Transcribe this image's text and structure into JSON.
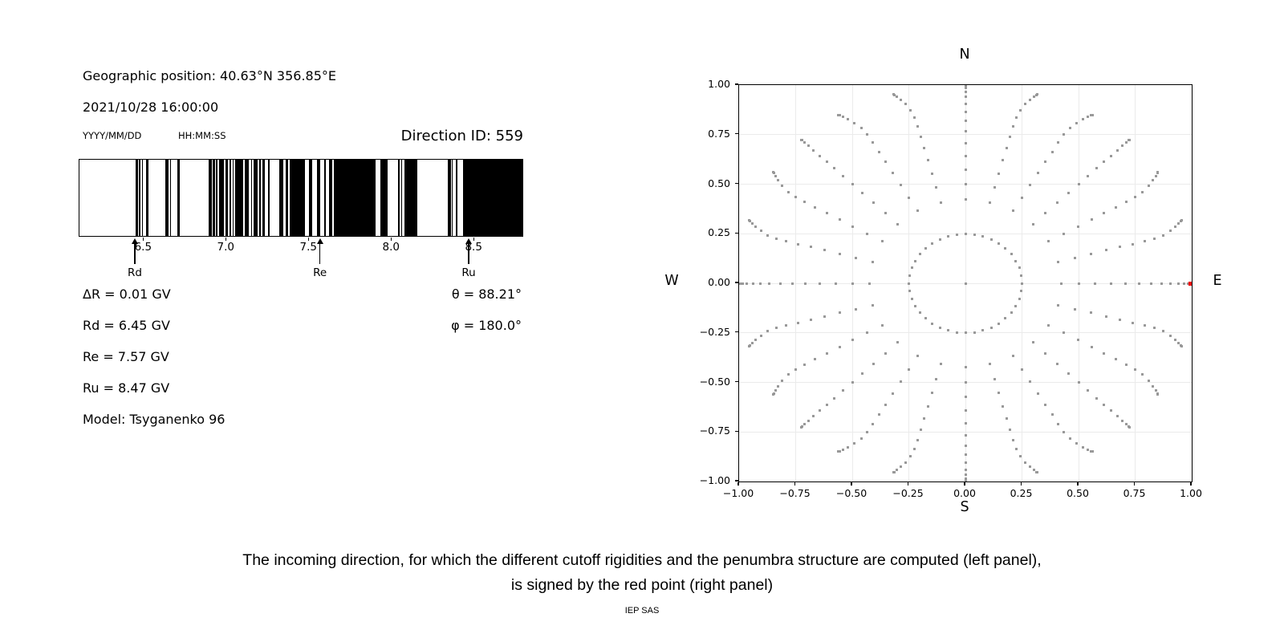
{
  "left_panel": {
    "geo_position": "Geographic position: 40.63°N 356.85°E",
    "datetime": "2021/10/28 16:00:00",
    "date_hint": "YYYY/MM/DD",
    "time_hint": "HH:MM:SS",
    "direction_id": "Direction ID: 559",
    "info_left": [
      "ΔR = 0.01 GV",
      "Rd = 6.45 GV",
      "Re = 7.57 GV",
      "Ru = 8.47 GV",
      "Model: Tsyganenko 96"
    ],
    "info_right": [
      "θ = 88.21°",
      "φ = 180.0°"
    ]
  },
  "caption": {
    "line1": "The incoming direction, for which the different cutoff rigidities and the penumbra structure are computed (left panel),",
    "line2": "is signed by the red point (right panel)",
    "credit": "IEP SAS"
  },
  "chart_data": [
    {
      "type": "barcode",
      "name": "penumbra-structure",
      "x_range_gv": [
        6.11,
        8.8
      ],
      "x_ticks": [
        6.5,
        7.0,
        7.5,
        8.0,
        8.5
      ],
      "x_tick_labels": [
        "6.5",
        "7.0",
        "7.5",
        "8.0",
        "8.5"
      ],
      "bar_color": "#000000",
      "background_color": "#ffffff",
      "bars_gv": [
        [
          6.45,
          6.462
        ],
        [
          6.471,
          6.478
        ],
        [
          6.489,
          6.496
        ],
        [
          6.511,
          6.526
        ],
        [
          6.63,
          6.647
        ],
        [
          6.659,
          6.666
        ],
        [
          6.7,
          6.717
        ],
        [
          6.893,
          6.909
        ],
        [
          6.917,
          6.929
        ],
        [
          6.936,
          6.944
        ],
        [
          6.957,
          6.985
        ],
        [
          6.994,
          7.006
        ],
        [
          7.018,
          7.028
        ],
        [
          7.035,
          7.043
        ],
        [
          7.054,
          7.103
        ],
        [
          7.11,
          7.134
        ],
        [
          7.147,
          7.154
        ],
        [
          7.163,
          7.186
        ],
        [
          7.196,
          7.205
        ],
        [
          7.215,
          7.231
        ],
        [
          7.25,
          7.26
        ],
        [
          7.32,
          7.344
        ],
        [
          7.357,
          7.373
        ],
        [
          7.384,
          7.473
        ],
        [
          7.497,
          7.521
        ],
        [
          7.545,
          7.569
        ],
        [
          7.589,
          7.602
        ],
        [
          7.622,
          7.639
        ],
        [
          7.65,
          7.9
        ],
        [
          7.93,
          7.977
        ],
        [
          8.039,
          8.047
        ],
        [
          8.057,
          8.064
        ],
        [
          8.076,
          8.153
        ],
        [
          8.339,
          8.347
        ],
        [
          8.35,
          8.358
        ],
        [
          8.362,
          8.367
        ],
        [
          8.385,
          8.395
        ],
        [
          8.43,
          8.8
        ]
      ],
      "markers": [
        {
          "label": "Rd",
          "value_gv": 6.45
        },
        {
          "label": "Re",
          "value_gv": 7.57
        },
        {
          "label": "Ru",
          "value_gv": 8.47
        }
      ]
    },
    {
      "type": "scatter",
      "name": "incoming-direction-grid",
      "xlim": [
        -1,
        1
      ],
      "ylim": [
        -1,
        1
      ],
      "x_ticks": [
        -1,
        -0.75,
        -0.5,
        -0.25,
        0,
        0.25,
        0.5,
        0.75,
        1
      ],
      "y_ticks": [
        1,
        0.75,
        0.5,
        0.25,
        0,
        -0.25,
        -0.5,
        -0.75,
        -1
      ],
      "x_tick_labels": [
        "−1.00",
        "−0.75",
        "−0.50",
        "−0.25",
        "0.00",
        "0.25",
        "0.50",
        "0.75",
        "1.00"
      ],
      "y_tick_labels": [
        "1.00",
        "0.75",
        "0.50",
        "0.25",
        "0.00",
        "−0.25",
        "−0.50",
        "−0.75",
        "−1.00"
      ],
      "grid": true,
      "grid_color": "#ebebeb",
      "dot_color": "#999999",
      "dot_size_px": 3,
      "compass_labels": {
        "top": "N",
        "bottom": "S",
        "left": "W",
        "right": "E"
      },
      "direction_grid": {
        "center_dot": true,
        "ring": {
          "radius": 0.25,
          "count": 40
        },
        "azimuth_start_deg": 0,
        "azimuth_step_deg": 15,
        "azimuth_count": 24,
        "zenith_start_deg": 25,
        "zenith_step_deg": 5,
        "zenith_count": 14,
        "radius_of_zenith": "sin",
        "tip_curl_deg": 4,
        "tip_stretch": 0.025
      },
      "red_point": {
        "x": 1.0,
        "y": 0.0,
        "color": "#f00000"
      }
    }
  ]
}
